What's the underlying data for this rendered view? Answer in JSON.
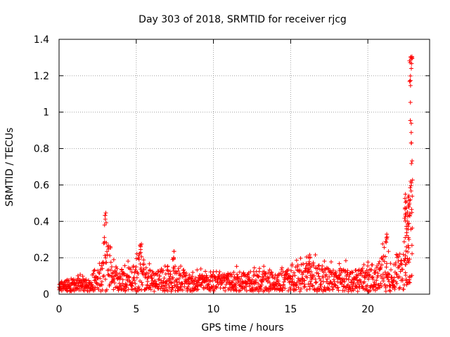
{
  "chart_data": {
    "type": "scatter",
    "title": "Day 303 of 2018, SRMTID for receiver rjcg",
    "xlabel": "GPS time / hours",
    "ylabel": "SRMTID / TECUs",
    "xlim": [
      0,
      24
    ],
    "ylim": [
      0,
      1.4
    ],
    "x_ticks": [
      0,
      5,
      10,
      15,
      20
    ],
    "x_tick_labels": [
      "0",
      "5",
      "10",
      "15",
      "20"
    ],
    "y_ticks": [
      0,
      0.2,
      0.4,
      0.6,
      0.8,
      1,
      1.2,
      1.4
    ],
    "y_tick_labels": [
      "0",
      "0.2",
      "0.4",
      "0.6",
      "0.8",
      "1",
      "1.2",
      "1.4"
    ],
    "grid": true,
    "marker": "+",
    "series": [
      {
        "name": "SRMTID",
        "color": "#ff0000",
        "data_range": [
          0,
          22.9
        ],
        "approx_envelope": [
          {
            "x": 0.0,
            "y": 0.06
          },
          {
            "x": 2.0,
            "y": 0.07
          },
          {
            "x": 2.8,
            "y": 0.18
          },
          {
            "x": 3.0,
            "y": 0.38
          },
          {
            "x": 3.4,
            "y": 0.14
          },
          {
            "x": 4.5,
            "y": 0.12
          },
          {
            "x": 5.2,
            "y": 0.22
          },
          {
            "x": 6.0,
            "y": 0.1
          },
          {
            "x": 7.5,
            "y": 0.17
          },
          {
            "x": 8.5,
            "y": 0.09
          },
          {
            "x": 10.0,
            "y": 0.09
          },
          {
            "x": 12.0,
            "y": 0.11
          },
          {
            "x": 14.0,
            "y": 0.11
          },
          {
            "x": 16.0,
            "y": 0.16
          },
          {
            "x": 18.0,
            "y": 0.12
          },
          {
            "x": 19.5,
            "y": 0.13
          },
          {
            "x": 20.5,
            "y": 0.12
          },
          {
            "x": 21.0,
            "y": 0.22
          },
          {
            "x": 21.5,
            "y": 0.15
          },
          {
            "x": 22.0,
            "y": 0.22
          },
          {
            "x": 22.5,
            "y": 0.35
          },
          {
            "x": 22.8,
            "y": 1.3
          }
        ],
        "peaks": [
          {
            "x": 3.0,
            "y": 0.45
          },
          {
            "x": 5.3,
            "y": 0.28
          },
          {
            "x": 7.4,
            "y": 0.24
          },
          {
            "x": 16.2,
            "y": 0.24
          },
          {
            "x": 21.2,
            "y": 0.34
          },
          {
            "x": 22.8,
            "y": 1.31
          }
        ]
      }
    ]
  }
}
